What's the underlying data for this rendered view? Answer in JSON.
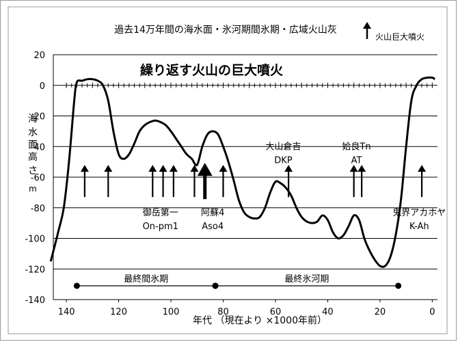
{
  "chart_data": {
    "type": "line",
    "title": "過去14万年間の海水面・氷河期間氷期・広域火山灰",
    "subtitle": "繰り返す火山の巨大噴火",
    "xlabel": "年代 （現在より ×1000年前）",
    "ylabel_chars": [
      "海",
      "水",
      "面",
      "高",
      "さ",
      "m"
    ],
    "xlim": [
      145,
      -2
    ],
    "ylim": [
      -140,
      20
    ],
    "x_ticks": [
      140,
      120,
      100,
      80,
      60,
      40,
      20,
      0
    ],
    "y_ticks": [
      20,
      0,
      -20,
      -40,
      -60,
      -80,
      -100,
      -120,
      -140
    ],
    "grid": true,
    "legend_text": "火山巨大噴火",
    "series": [
      {
        "x": [
          146,
          143,
          141,
          139,
          137,
          136,
          134,
          132,
          130,
          128,
          126,
          124,
          122,
          120,
          118,
          116,
          114,
          112,
          110,
          108,
          106,
          104,
          102,
          100,
          98,
          96,
          94,
          92,
          90,
          88,
          86,
          84,
          82,
          80,
          78,
          76,
          74,
          72,
          70,
          68,
          66,
          64,
          62,
          60,
          58,
          56,
          54,
          52,
          50,
          48,
          46,
          44,
          42,
          40,
          38,
          36,
          34,
          32,
          30,
          28,
          26,
          24,
          22,
          20,
          18,
          16,
          14,
          12,
          10,
          8,
          6,
          4,
          2,
          0,
          -1
        ],
        "y": [
          -115,
          -95,
          -80,
          -50,
          -10,
          2,
          3,
          4,
          4,
          3,
          0,
          -10,
          -30,
          -45,
          -48,
          -45,
          -38,
          -30,
          -26,
          -24,
          -23,
          -24,
          -26,
          -30,
          -35,
          -40,
          -45,
          -48,
          -52,
          -40,
          -32,
          -30,
          -32,
          -40,
          -50,
          -62,
          -75,
          -83,
          -86,
          -87,
          -86,
          -80,
          -70,
          -63,
          -64,
          -67,
          -72,
          -80,
          -86,
          -89,
          -90,
          -89,
          -85,
          -88,
          -96,
          -100,
          -98,
          -92,
          -85,
          -88,
          -100,
          -108,
          -114,
          -118,
          -118,
          -112,
          -98,
          -75,
          -40,
          -10,
          0,
          4,
          5,
          5,
          4
        ]
      }
    ],
    "eruptions": [
      {
        "age": 133,
        "size": "small"
      },
      {
        "age": 124,
        "size": "small"
      },
      {
        "age": 107,
        "size": "small"
      },
      {
        "age": 103,
        "size": "small"
      },
      {
        "age": 99,
        "size": "small"
      },
      {
        "age": 91,
        "size": "small"
      },
      {
        "age": 87,
        "size": "large"
      },
      {
        "age": 80,
        "size": "small"
      },
      {
        "age": 55,
        "size": "small"
      },
      {
        "age": 30,
        "size": "small"
      },
      {
        "age": 27,
        "size": "small"
      },
      {
        "age": 4,
        "size": "small"
      }
    ],
    "annotations": [
      {
        "lines": [
          "御岳第一",
          "On-pm1"
        ],
        "x": 104,
        "y": -85
      },
      {
        "lines": [
          "阿蘇4",
          "Aso4"
        ],
        "x": 84,
        "y": -85
      },
      {
        "lines": [
          "大山倉吉",
          "DKP"
        ],
        "x": 57,
        "y": -42
      },
      {
        "lines": [
          "姶良Tn",
          "AT"
        ],
        "x": 29,
        "y": -42
      },
      {
        "lines": [
          "鬼界アカホヤ",
          "K-Ah"
        ],
        "x": 5,
        "y": -85
      }
    ],
    "periods": [
      {
        "label": "最終間氷期",
        "start": 136,
        "end": 83,
        "y": -131
      },
      {
        "label": "最終氷河期",
        "start": 83,
        "end": 13,
        "y": -131
      }
    ]
  }
}
